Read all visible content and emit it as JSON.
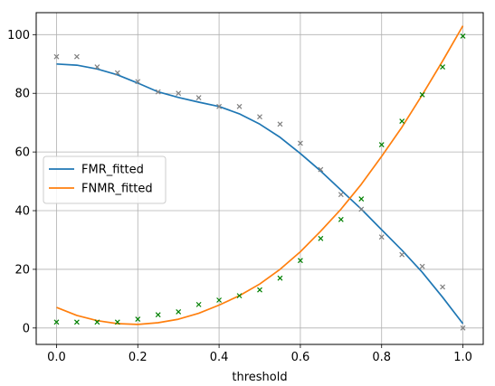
{
  "chart_data": {
    "type": "line",
    "title": "",
    "xlabel": "threshold",
    "ylabel": "",
    "xlim": [
      -0.05,
      1.05
    ],
    "ylim": [
      -5.6,
      107.5
    ],
    "xticks": [
      0.0,
      0.2,
      0.4,
      0.6,
      0.8,
      1.0
    ],
    "xtick_labels": [
      "0.0",
      "0.2",
      "0.4",
      "0.6",
      "0.8",
      "1.0"
    ],
    "yticks": [
      0,
      20,
      40,
      60,
      80,
      100
    ],
    "ytick_labels": [
      "0",
      "20",
      "40",
      "60",
      "80",
      "100"
    ],
    "grid": true,
    "legend_position": "center-left",
    "series": [
      {
        "name": "FMR_fitted",
        "kind": "line",
        "color": "#1f77b4",
        "x": [
          0.0,
          0.05,
          0.1,
          0.15,
          0.2,
          0.25,
          0.3,
          0.35,
          0.4,
          0.45,
          0.5,
          0.55,
          0.6,
          0.65,
          0.7,
          0.75,
          0.8,
          0.85,
          0.9,
          0.95,
          1.0
        ],
        "y": [
          90.0,
          89.6,
          88.3,
          86.3,
          83.5,
          80.5,
          78.6,
          77.0,
          75.5,
          73.0,
          69.5,
          65.0,
          59.5,
          53.5,
          47.0,
          40.5,
          33.5,
          26.5,
          19.0,
          10.5,
          1.5
        ]
      },
      {
        "name": "FNMR_fitted",
        "kind": "line",
        "color": "#ff7f0e",
        "x": [
          0.0,
          0.05,
          0.1,
          0.15,
          0.2,
          0.25,
          0.3,
          0.35,
          0.4,
          0.45,
          0.5,
          0.55,
          0.6,
          0.65,
          0.7,
          0.75,
          0.8,
          0.85,
          0.9,
          0.95,
          1.0
        ],
        "y": [
          7.0,
          4.3,
          2.5,
          1.5,
          1.2,
          1.8,
          3.0,
          5.0,
          7.8,
          11.0,
          15.0,
          20.0,
          26.0,
          33.0,
          40.5,
          49.0,
          58.5,
          68.5,
          79.5,
          91.0,
          103.0
        ]
      },
      {
        "name": "",
        "kind": "markers",
        "marker": "x",
        "color": "#808080",
        "x": [
          0.0,
          0.05,
          0.1,
          0.15,
          0.2,
          0.25,
          0.3,
          0.35,
          0.4,
          0.45,
          0.5,
          0.55,
          0.6,
          0.65,
          0.7,
          0.75,
          0.8,
          0.85,
          0.9,
          0.95,
          1.0
        ],
        "y": [
          92.5,
          92.5,
          89.0,
          87.0,
          84.0,
          80.5,
          80.0,
          78.5,
          75.5,
          75.5,
          72.0,
          69.5,
          63.0,
          54.0,
          45.5,
          40.5,
          31.0,
          25.0,
          21.0,
          14.0,
          0.0
        ]
      },
      {
        "name": "",
        "kind": "markers",
        "marker": "x",
        "color": "#008000",
        "x": [
          0.0,
          0.05,
          0.1,
          0.15,
          0.2,
          0.25,
          0.3,
          0.35,
          0.4,
          0.45,
          0.5,
          0.55,
          0.6,
          0.65,
          0.7,
          0.75,
          0.8,
          0.85,
          0.9,
          0.95,
          1.0
        ],
        "y": [
          2.0,
          2.0,
          2.0,
          2.0,
          3.0,
          4.5,
          5.5,
          8.0,
          9.5,
          11.0,
          13.0,
          17.0,
          23.0,
          30.5,
          37.0,
          44.0,
          62.5,
          70.5,
          79.5,
          89.0,
          99.5
        ]
      }
    ]
  }
}
